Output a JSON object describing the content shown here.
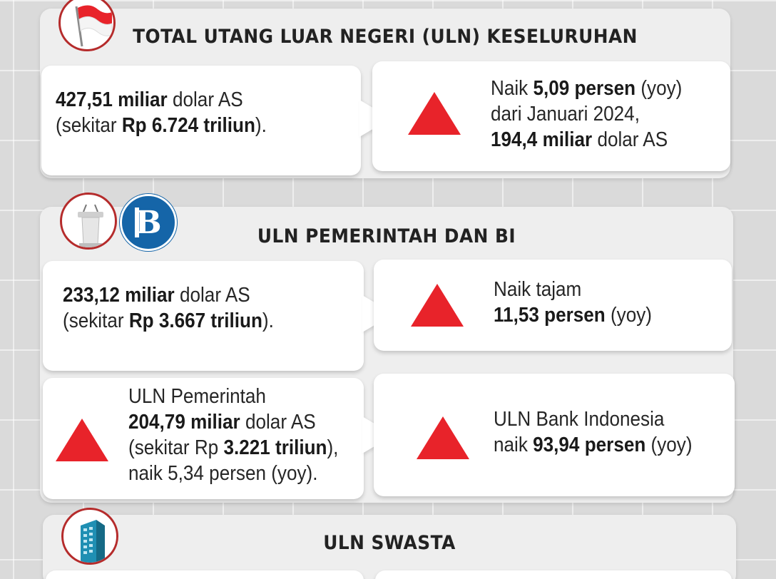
{
  "colors": {
    "accent_red": "#e8232a",
    "bi_blue": "#1565a8",
    "icon_ring": "#b52b2b"
  },
  "total": {
    "title": "TOTAL UTANG LUAR NEGERI (ULN) KESELURUHAN",
    "icon": "indonesia-flag-icon",
    "left": {
      "v1": "427,51 miliar",
      "t1": " dolar AS",
      "t2": "(sekitar ",
      "v2": "Rp 6.724 triliun",
      "t3": ")."
    },
    "right": {
      "t1": "Naik ",
      "v1": "5,09 persen",
      "t2": " (yoy)",
      "t3": "dari Januari 2024,",
      "v2": "194,4 miliar",
      "t4": " dolar AS"
    }
  },
  "pemerintah": {
    "title": "ULN PEMERINTAH DAN BI",
    "icons": [
      "podium-icon",
      "bank-indonesia-logo-icon"
    ],
    "left": {
      "v1": "233,12 miliar",
      "t1": " dolar AS",
      "t2": "(sekitar ",
      "v2": "Rp 3.667 triliun",
      "t3": ")."
    },
    "right": {
      "t1": "Naik tajam",
      "v1": "11,53 persen",
      "t2": " (yoy)"
    },
    "gov": {
      "t1": "ULN Pemerintah",
      "v1": "204,79 miliar",
      "t2": " dolar AS",
      "t3": "(sekitar Rp ",
      "v2": "3.221 triliun",
      "t4": "),",
      "t5": "naik 5,34 persen (yoy)."
    },
    "bi": {
      "t1": "ULN Bank Indonesia",
      "t2": "naik ",
      "v1": "93,94 persen",
      "t3": " (yoy)"
    }
  },
  "swasta": {
    "title": "ULN SWASTA",
    "icon": "office-building-icon"
  }
}
